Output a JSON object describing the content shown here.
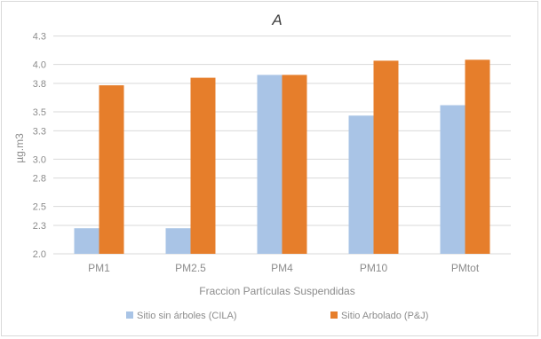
{
  "chart_data": {
    "type": "bar",
    "title": "A",
    "xlabel": "Fraccion Partículas Suspendidas",
    "ylabel": "µg.m3",
    "categories": [
      "PM1",
      "PM2.5",
      "PM4",
      "PM10",
      "PMtot"
    ],
    "yticks": [
      "2.0",
      "2.3",
      "2.5",
      "2.8",
      "3.0",
      "3.3",
      "3.5",
      "3.8",
      "4.0",
      "4.3"
    ],
    "ylim": [
      2.0,
      4.25
    ],
    "grid": true,
    "legend_position": "bottom",
    "series": [
      {
        "name": "Sitio sin árboles (CILA)",
        "color": "#a9c4e6",
        "values": [
          2.27,
          2.27,
          3.89,
          3.46,
          3.57
        ]
      },
      {
        "name": "Sitio Arbolado (P&J)",
        "color": "#e67e2b",
        "values": [
          3.78,
          3.86,
          3.89,
          4.04,
          4.05
        ]
      }
    ]
  }
}
